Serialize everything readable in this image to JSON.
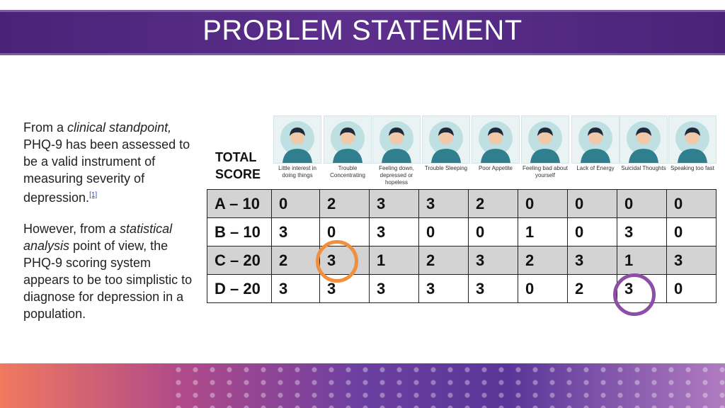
{
  "title": "PROBLEM STATEMENT",
  "paragraph1": {
    "pre": "From a ",
    "italic": "clinical standpoint,",
    "post": " PHQ-9 has been assessed to be a valid instrument of measuring severity of depression.",
    "ref": "[1]"
  },
  "paragraph2": {
    "pre": "However, from ",
    "italic": "a statistical analysis",
    "post": " point of view, the PHQ-9 scoring system appears to be too simplistic to diagnose for depression in a population."
  },
  "total_score_label": "TOTAL SCORE",
  "symptoms": [
    "Little interest in doing things",
    "Trouble Concentrating",
    "Feeling down, depressed or hopeless",
    "Trouble Sleeping",
    "Poor Appetite",
    "Feeling bad about yourself",
    "Lack of Energy",
    "Suicidal Thoughts",
    "Speaking too fast"
  ],
  "rows": [
    {
      "label": "A – 10",
      "values": [
        "0",
        "2",
        "3",
        "3",
        "2",
        "0",
        "0",
        "0",
        "0"
      ]
    },
    {
      "label": "B – 10",
      "values": [
        "3",
        "0",
        "3",
        "0",
        "0",
        "1",
        "0",
        "3",
        "0"
      ]
    },
    {
      "label": "C – 20",
      "values": [
        "2",
        "3",
        "1",
        "2",
        "3",
        "2",
        "3",
        "1",
        "3"
      ]
    },
    {
      "label": "D – 20",
      "values": [
        "3",
        "3",
        "3",
        "3",
        "3",
        "0",
        "2",
        "3",
        "0"
      ]
    }
  ],
  "highlights": [
    {
      "row": "C – 20",
      "column": 2,
      "color": "#f0903c"
    },
    {
      "row": "D – 20",
      "column": 8,
      "color": "#8e4da8"
    }
  ],
  "colors": {
    "banner": "#5c2f8c",
    "shaded_row": "#d3d3d3"
  }
}
